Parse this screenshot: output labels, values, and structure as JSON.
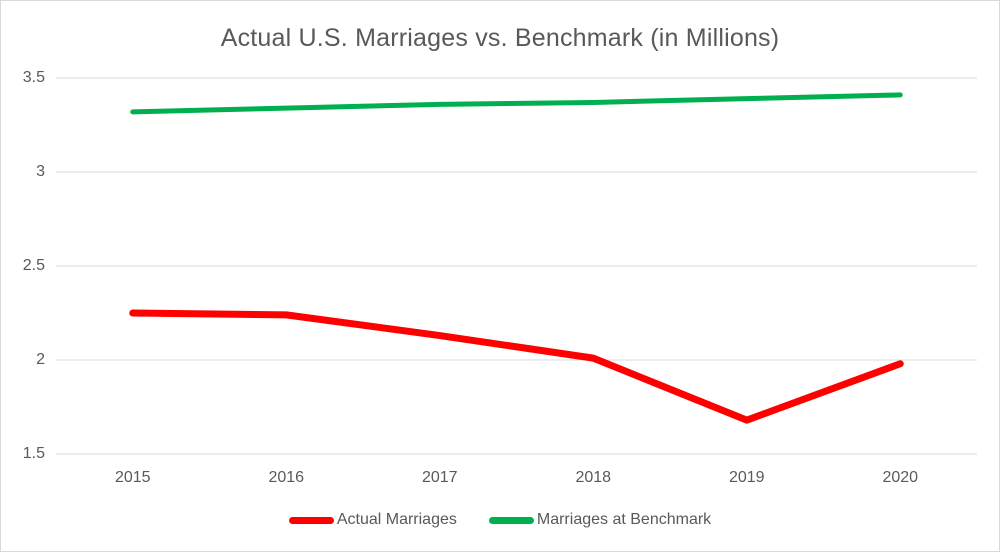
{
  "chart_data": {
    "type": "line",
    "title": "Actual U.S. Marriages vs. Benchmark (in Millions)",
    "categories": [
      "2015",
      "2016",
      "2017",
      "2018",
      "2019",
      "2020"
    ],
    "series": [
      {
        "name": "Actual Marriages",
        "color": "#FF0000",
        "line_width": 7,
        "values": [
          2.25,
          2.24,
          2.13,
          2.01,
          1.68,
          1.98
        ]
      },
      {
        "name": "Marriages at Benchmark",
        "color": "#00B050",
        "line_width": 5,
        "values": [
          3.32,
          3.34,
          3.36,
          3.37,
          3.39,
          3.41
        ]
      }
    ],
    "xlabel": "",
    "ylabel": "",
    "ylim": [
      1.5,
      3.5
    ],
    "yticks": [
      {
        "label": "3.5",
        "value": 3.5
      },
      {
        "label": "3",
        "value": 3.0
      },
      {
        "label": "2.5",
        "value": 2.5
      },
      {
        "label": "2",
        "value": 2.0
      },
      {
        "label": "1.5",
        "value": 1.5
      }
    ],
    "grid": "horizontal",
    "legend_position": "bottom",
    "text_color": "#595959",
    "grid_color": "#D9D9D9",
    "border_color": "#D9D9D9",
    "background": "#FFFFFF"
  }
}
